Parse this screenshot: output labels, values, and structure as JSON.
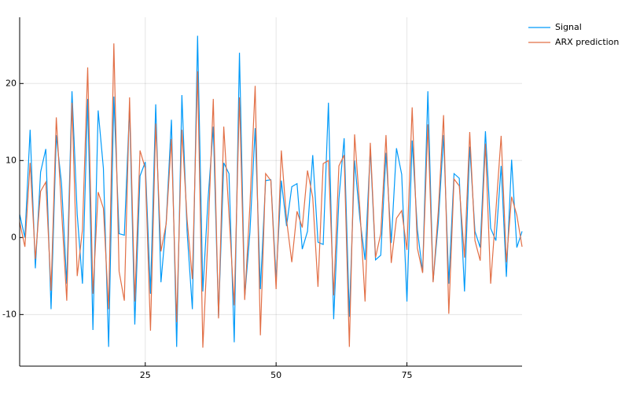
{
  "chart_data": {
    "type": "line",
    "x": [
      1,
      2,
      3,
      4,
      5,
      6,
      7,
      8,
      9,
      10,
      11,
      12,
      13,
      14,
      15,
      16,
      17,
      18,
      19,
      20,
      21,
      22,
      23,
      24,
      25,
      26,
      27,
      28,
      29,
      30,
      31,
      32,
      33,
      34,
      35,
      36,
      37,
      38,
      39,
      40,
      41,
      42,
      43,
      44,
      45,
      46,
      47,
      48,
      49,
      50,
      51,
      52,
      53,
      54,
      55,
      56,
      57,
      58,
      59,
      60,
      61,
      62,
      63,
      64,
      65,
      66,
      67,
      68,
      69,
      70,
      71,
      72,
      73,
      74,
      75,
      76,
      77,
      78,
      79,
      80,
      81,
      82,
      83,
      84,
      85,
      86,
      87,
      88,
      89,
      90,
      91,
      92,
      93,
      94,
      95,
      96,
      97
    ],
    "series": [
      {
        "name": "Signal",
        "color": "#009af9",
        "values": [
          3,
          0,
          14,
          -4,
          8.5,
          11.5,
          -9.3,
          13.3,
          7,
          -6,
          19,
          3,
          -6,
          18,
          -12,
          16.5,
          9,
          -14.2,
          18.3,
          0.5,
          0.3,
          17,
          -11.3,
          8,
          9.8,
          -7.3,
          17.3,
          -5.8,
          2,
          15.3,
          -14.2,
          18.5,
          0.7,
          -9.3,
          26.2,
          -7,
          5,
          14.4,
          -10.3,
          9.7,
          8.3,
          -13.6,
          24,
          -7.8,
          0.7,
          14.2,
          -6.7,
          7.4,
          7.5,
          -5.5,
          7.4,
          1.5,
          6.6,
          7,
          -1.5,
          0.8,
          10.7,
          -0.6,
          -0.9,
          17.5,
          -10.6,
          5,
          12.9,
          -10.3,
          10,
          2.5,
          -2.9,
          11.5,
          -2.9,
          -2.3,
          11,
          -0.7,
          11.6,
          8.2,
          -8.3,
          12.6,
          1,
          -4.5,
          19,
          -5.7,
          2,
          13.3,
          -6,
          8.3,
          7.7,
          -7,
          11.8,
          0.8,
          -1.3,
          13.8,
          1.2,
          -0.4,
          9.3,
          -5.1,
          10.1,
          -1.3,
          0.8
        ]
      },
      {
        "name": "ARX prediction",
        "color": "#e26f46",
        "values": [
          2,
          -1.2,
          9.7,
          -2.8,
          6,
          7.2,
          -6.9,
          15.6,
          3.6,
          -8.2,
          17.5,
          -5,
          1,
          22.1,
          -7.3,
          5.9,
          3.8,
          -9.3,
          25.2,
          -4.4,
          -8.2,
          18.2,
          -8.3,
          11.3,
          9,
          -12.1,
          14.8,
          -1.8,
          1.8,
          12.8,
          -11,
          14,
          2.3,
          -5.4,
          21.6,
          -14.3,
          0.4,
          18,
          -10.5,
          14.4,
          3,
          -8.8,
          18.2,
          -8.1,
          4.2,
          19.7,
          -12.7,
          8.3,
          7.4,
          -6.7,
          11.3,
          2.3,
          -3.2,
          3.4,
          1.3,
          8.7,
          5.2,
          -6.4,
          9.6,
          10,
          -7.5,
          9.3,
          10.7,
          -14.2,
          13.4,
          3.8,
          -8.3,
          12.3,
          -2.6,
          0.5,
          13.3,
          -3.3,
          2.5,
          3.5,
          -1.6,
          16.9,
          -1.4,
          -4.6,
          14.7,
          -5.8,
          3.5,
          15.9,
          -9.9,
          7.6,
          6.7,
          -2.6,
          13.7,
          -0.4,
          -3,
          12.2,
          -6,
          3.5,
          13.2,
          -3.2,
          5.3,
          2.9,
          -1.2
        ]
      }
    ],
    "xlim": [
      1,
      97
    ],
    "xticks": [
      25,
      50,
      75
    ],
    "ylim": [
      -16.7,
      28.6
    ],
    "yticks": [
      -10,
      0,
      10,
      20
    ],
    "grid": true,
    "legend": "outside-top-right"
  }
}
